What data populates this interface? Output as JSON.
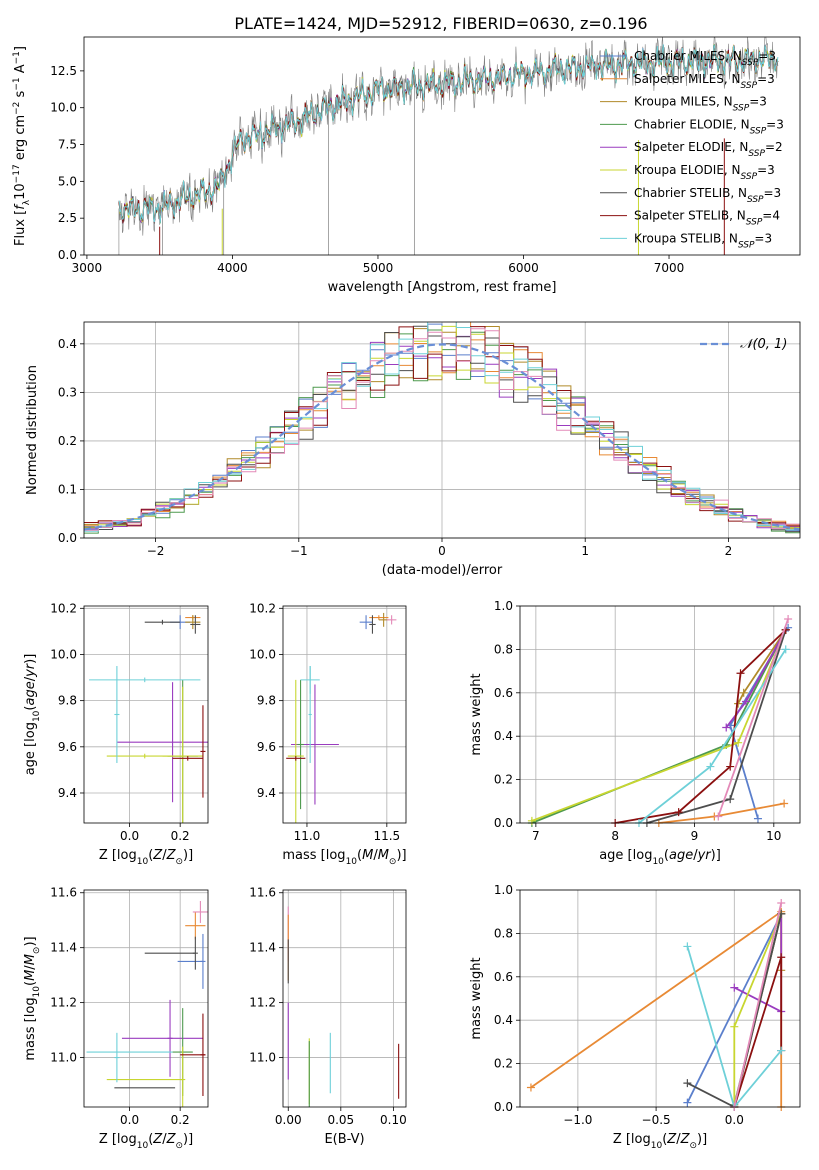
{
  "figure": {
    "title": "PLATE=1424, MJD=52912, FIBERID=0630, z=0.196",
    "colors": [
      "#5b7fcc",
      "#e88a35",
      "#b08a2a",
      "#4e9a4e",
      "#9a3cbf",
      "#c8d630",
      "#4d4d4d",
      "#8b1010",
      "#6ed0d8",
      "#e38ab8",
      "#7f7f7f"
    ]
  },
  "chart_data": [
    {
      "id": "spectrum",
      "type": "line",
      "title": "PLATE=1424, MJD=52912, FIBERID=0630, z=0.196",
      "xlabel": "wavelength [Angstrom, rest frame]",
      "ylabel": "Flux [f_λ 10^-17 erg cm^-2 s^-1 A^-1]",
      "xlim": [
        2980,
        7900
      ],
      "ylim": [
        0,
        14.8
      ],
      "xticks": [
        "3000",
        "4000",
        "5000",
        "6000",
        "7000"
      ],
      "yticks": [
        "0.0",
        "2.5",
        "5.0",
        "7.5",
        "10.0",
        "12.5"
      ],
      "grid": false,
      "legend_position": "right",
      "legend": [
        "Chabrier MILES, N_SSP=3",
        "Salpeter MILES, N_SSP=3",
        "Kroupa MILES, N_SSP=3",
        "Chabrier ELODIE, N_SSP=3",
        "Salpeter ELODIE, N_SSP=2",
        "Kroupa ELODIE, N_SSP=3",
        "Chabrier STELIB, N_SSP=3",
        "Salpeter STELIB, N_SSP=4",
        "Kroupa STELIB, N_SSP=3"
      ],
      "continuum_anchors": {
        "x": [
          3220,
          3500,
          3900,
          4050,
          4400,
          4700,
          5000,
          5400,
          5800,
          6200,
          6600,
          7000,
          7400,
          7750
        ],
        "y": [
          3.1,
          3.2,
          4.6,
          7.8,
          8.9,
          10.2,
          11.2,
          11.6,
          12.0,
          12.6,
          12.9,
          13.1,
          13.2,
          13.3
        ]
      }
    },
    {
      "id": "residuals",
      "type": "histogram",
      "xlabel": "(data-model)/error",
      "ylabel": "Normed distribution",
      "xlim": [
        -2.5,
        2.5
      ],
      "ylim": [
        0,
        0.445
      ],
      "xticks": [
        "−2",
        "−1",
        "0",
        "1",
        "2"
      ],
      "yticks": [
        "0.0",
        "0.1",
        "0.2",
        "0.3",
        "0.4"
      ],
      "grid": true,
      "legend_position": "top-right",
      "gaussian_label": "𝒩(0, 1)",
      "bin_width": 0.1
    },
    {
      "id": "age-vs-Z",
      "type": "errorbar",
      "xlabel": "Z [log10(Z/Z⊙)]",
      "ylabel": "age [log10(age/yr)]",
      "xlim": [
        -0.18,
        0.31
      ],
      "ylim": [
        9.27,
        10.21
      ],
      "xticks": [
        "0.0",
        "0.2"
      ],
      "yticks": [
        "9.4",
        "9.6",
        "9.8",
        "10.0",
        "10.2"
      ],
      "grid": true,
      "points": [
        {
          "x": 0.2,
          "y": 10.14,
          "xerr": 0.04,
          "yerr": 0.03,
          "c": 0
        },
        {
          "x": 0.25,
          "y": 10.16,
          "xerr": 0.03,
          "yerr": 0.01,
          "c": 1
        },
        {
          "x": 0.25,
          "y": 10.14,
          "xerr": 0.03,
          "yerr": 0.03,
          "c": 2
        },
        {
          "x": 0.26,
          "y": 10.13,
          "xerr": 0.02,
          "yerr": 0.04,
          "c": 6
        },
        {
          "x": 0.13,
          "y": 10.14,
          "xerr": 0.07,
          "yerr": 0.01,
          "c": 6
        },
        {
          "x": 0.17,
          "y": 9.62,
          "xerr": 0.22,
          "yerr": 0.26,
          "c": 4
        },
        {
          "x": 0.21,
          "y": 9.56,
          "xerr": 0.06,
          "yerr": 0.33,
          "c": 3
        },
        {
          "x": 0.21,
          "y": 9.56,
          "xerr": 0.08,
          "yerr": 0.3,
          "c": 5
        },
        {
          "x": 0.06,
          "y": 9.56,
          "xerr": 0.15,
          "yerr": 0.01,
          "c": 5
        },
        {
          "x": 0.23,
          "y": 9.55,
          "xerr": 0.06,
          "yerr": 0.01,
          "c": 7
        },
        {
          "x": 0.29,
          "y": 9.58,
          "xerr": 0.01,
          "yerr": 0.2,
          "c": 7
        },
        {
          "x": 0.06,
          "y": 9.89,
          "xerr": 0.22,
          "yerr": 0.01,
          "c": 8
        },
        {
          "x": -0.05,
          "y": 9.74,
          "xerr": 0.01,
          "yerr": 0.21,
          "c": 8
        }
      ]
    },
    {
      "id": "age-vs-mass",
      "type": "errorbar",
      "xlabel": "mass [log10(M/M⊙)]",
      "ylabel": "",
      "xlim": [
        10.85,
        11.62
      ],
      "ylim": [
        9.27,
        10.21
      ],
      "xticks": [
        "11.0",
        "11.5"
      ],
      "yticks": [
        "9.4",
        "9.6",
        "9.8",
        "10.0",
        "10.2"
      ],
      "grid": true,
      "points": [
        {
          "x": 11.37,
          "y": 10.14,
          "xerr": 0.04,
          "yerr": 0.03,
          "c": 0
        },
        {
          "x": 11.45,
          "y": 10.16,
          "xerr": 0.06,
          "yerr": 0.01,
          "c": 1
        },
        {
          "x": 11.48,
          "y": 10.15,
          "xerr": 0.03,
          "yerr": 0.03,
          "c": 2
        },
        {
          "x": 11.53,
          "y": 10.15,
          "xerr": 0.03,
          "yerr": 0.02,
          "c": 9
        },
        {
          "x": 11.41,
          "y": 10.13,
          "xerr": 0.02,
          "yerr": 0.04,
          "c": 6
        },
        {
          "x": 11.05,
          "y": 9.61,
          "xerr": 0.15,
          "yerr": 0.26,
          "c": 4
        },
        {
          "x": 10.96,
          "y": 9.61,
          "xerr": 0.02,
          "yerr": 0.28,
          "c": 3
        },
        {
          "x": 10.93,
          "y": 9.56,
          "xerr": 0.05,
          "yerr": 0.33,
          "c": 5
        },
        {
          "x": 10.93,
          "y": 9.55,
          "xerr": 0.06,
          "yerr": 0.01,
          "c": 7
        },
        {
          "x": 11.02,
          "y": 9.89,
          "xerr": 0.06,
          "yerr": 0.06,
          "c": 8
        },
        {
          "x": 11.02,
          "y": 9.74,
          "xerr": 0.01,
          "yerr": 0.21,
          "c": 8
        }
      ]
    },
    {
      "id": "massweight-vs-age",
      "type": "line",
      "xlabel": "age [log10(age/yr)]",
      "ylabel": "mass weight",
      "xlim": [
        6.8,
        10.33
      ],
      "ylim": [
        0,
        1
      ],
      "xticks": [
        "7",
        "8",
        "9",
        "10"
      ],
      "yticks": [
        "0.0",
        "0.2",
        "0.4",
        "0.6",
        "0.8",
        "1.0"
      ],
      "grid": true,
      "series": [
        {
          "c": 0,
          "x": [
            10.18,
            9.45,
            9.8
          ],
          "y": [
            0.9,
            0.45,
            0.02
          ]
        },
        {
          "c": 1,
          "x": [
            10.13,
            9.25,
            8.55
          ],
          "y": [
            0.09,
            0.03,
            0.0
          ]
        },
        {
          "c": 2,
          "x": [
            10.15,
            9.62,
            9.55
          ],
          "y": [
            0.89,
            0.6,
            0.55
          ]
        },
        {
          "c": 3,
          "x": [
            10.15,
            9.4,
            6.95
          ],
          "y": [
            0.89,
            0.36,
            0.0
          ]
        },
        {
          "c": 4,
          "x": [
            10.15,
            9.65,
            9.4
          ],
          "y": [
            0.89,
            0.56,
            0.44
          ]
        },
        {
          "c": 5,
          "x": [
            10.15,
            9.55,
            6.95
          ],
          "y": [
            0.89,
            0.37,
            0.01
          ]
        },
        {
          "c": 6,
          "x": [
            10.15,
            9.45,
            8.4
          ],
          "y": [
            0.89,
            0.11,
            0.0
          ]
        },
        {
          "c": 7,
          "x": [
            10.15,
            9.58,
            9.45,
            8.8,
            8.0
          ],
          "y": [
            0.89,
            0.69,
            0.26,
            0.05,
            0.0
          ]
        },
        {
          "c": 8,
          "x": [
            10.15,
            9.2,
            8.3
          ],
          "y": [
            0.8,
            0.26,
            0.0
          ]
        },
        {
          "c": 9,
          "x": [
            10.18,
            9.3
          ],
          "y": [
            0.94,
            0.03
          ]
        }
      ]
    },
    {
      "id": "mass-vs-Z",
      "type": "errorbar",
      "xlabel": "Z [log10(Z/Z⊙)]",
      "ylabel": "mass [log10(M/M⊙)]",
      "xlim": [
        -0.18,
        0.31
      ],
      "ylim": [
        10.82,
        11.61
      ],
      "xticks": [
        "0.0",
        "0.2"
      ],
      "yticks": [
        "11.0",
        "11.2",
        "11.4",
        "11.6"
      ],
      "grid": true,
      "points": [
        {
          "x": 0.24,
          "y": 11.35,
          "xerr": 0.05,
          "yerr": 0.0,
          "c": 0
        },
        {
          "x": 0.29,
          "y": 11.35,
          "xerr": 0.01,
          "yerr": 0.1,
          "c": 0
        },
        {
          "x": 0.26,
          "y": 11.48,
          "xerr": 0.04,
          "yerr": 0.05,
          "c": 1
        },
        {
          "x": 0.28,
          "y": 11.53,
          "xerr": 0.03,
          "yerr": 0.04,
          "c": 9
        },
        {
          "x": 0.16,
          "y": 11.38,
          "xerr": 0.1,
          "yerr": 0.0,
          "c": 6
        },
        {
          "x": 0.26,
          "y": 11.38,
          "xerr": 0.01,
          "yerr": 0.06,
          "c": 6
        },
        {
          "x": 0.13,
          "y": 11.07,
          "xerr": 0.16,
          "yerr": 0.0,
          "c": 4
        },
        {
          "x": 0.16,
          "y": 11.07,
          "xerr": 0.01,
          "yerr": 0.14,
          "c": 4
        },
        {
          "x": 0.21,
          "y": 11.02,
          "xerr": 0.04,
          "yerr": 0.16,
          "c": 3
        },
        {
          "x": 0.06,
          "y": 10.92,
          "xerr": 0.15,
          "yerr": 0.0,
          "c": 5
        },
        {
          "x": 0.21,
          "y": 10.92,
          "xerr": 0.01,
          "yerr": 0.12,
          "c": 5
        },
        {
          "x": 0.06,
          "y": 10.89,
          "xerr": 0.12,
          "yerr": 0.0,
          "c": 6
        },
        {
          "x": 0.25,
          "y": 11.01,
          "xerr": 0.05,
          "yerr": 0.0,
          "c": 7
        },
        {
          "x": 0.29,
          "y": 11.01,
          "xerr": 0.01,
          "yerr": 0.15,
          "c": 7
        },
        {
          "x": 0.0,
          "y": 11.02,
          "xerr": 0.17,
          "yerr": 0.0,
          "c": 8
        },
        {
          "x": -0.05,
          "y": 11.0,
          "xerr": 0.01,
          "yerr": 0.09,
          "c": 8
        }
      ]
    },
    {
      "id": "mass-vs-EBV",
      "type": "errorbar",
      "xlabel": "E(B-V)",
      "ylabel": "",
      "xlim": [
        -0.005,
        0.112
      ],
      "ylim": [
        10.82,
        11.61
      ],
      "xticks": [
        "0.00",
        "0.05",
        "0.10"
      ],
      "yticks": [
        "11.0",
        "11.2",
        "11.4",
        "11.6"
      ],
      "grid": true,
      "points": [
        {
          "x": 0.0,
          "y": 11.45,
          "xerr": 0.0,
          "yerr": 0.1,
          "c": 9
        },
        {
          "x": 0.0,
          "y": 11.4,
          "xerr": 0.0,
          "yerr": 0.12,
          "c": 1
        },
        {
          "x": 0.0,
          "y": 11.35,
          "xerr": 0.0,
          "yerr": 0.08,
          "c": 6
        },
        {
          "x": 0.0,
          "y": 11.06,
          "xerr": 0.0,
          "yerr": 0.14,
          "c": 4
        },
        {
          "x": 0.02,
          "y": 10.95,
          "xerr": 0.0,
          "yerr": 0.12,
          "c": 5
        },
        {
          "x": 0.02,
          "y": 10.94,
          "xerr": 0.0,
          "yerr": 0.12,
          "c": 3
        },
        {
          "x": 0.04,
          "y": 10.98,
          "xerr": 0.0,
          "yerr": 0.11,
          "c": 8
        },
        {
          "x": 0.105,
          "y": 10.95,
          "xerr": 0.0,
          "yerr": 0.1,
          "c": 7
        }
      ]
    },
    {
      "id": "massweight-vs-Z",
      "type": "line",
      "xlabel": "Z [log10(Z/Z⊙)]",
      "ylabel": "mass weight",
      "xlim": [
        -1.37,
        0.42
      ],
      "ylim": [
        0,
        1
      ],
      "xticks": [
        "−1.0",
        "−0.5",
        "0.0"
      ],
      "yticks": [
        "0.0",
        "0.2",
        "0.4",
        "0.6",
        "0.8",
        "1.0"
      ],
      "grid": true,
      "series": [
        {
          "c": 0,
          "x": [
            0.3,
            -0.3
          ],
          "y": [
            0.89,
            0.02
          ]
        },
        {
          "c": 1,
          "x": [
            -1.3,
            0.3,
            0.3
          ],
          "y": [
            0.09,
            0.9,
            0.0
          ]
        },
        {
          "c": 2,
          "x": [
            0.0,
            0.3,
            0.3
          ],
          "y": [
            0.0,
            0.89,
            0.63
          ]
        },
        {
          "c": 3,
          "x": [
            0.0,
            0.3
          ],
          "y": [
            0.01,
            0.89
          ]
        },
        {
          "c": 4,
          "x": [
            0.0,
            0.3,
            0.3
          ],
          "y": [
            0.55,
            0.44,
            0.89
          ]
        },
        {
          "c": 5,
          "x": [
            0.0,
            0.0,
            0.3
          ],
          "y": [
            0.0,
            0.37,
            0.89
          ]
        },
        {
          "c": 6,
          "x": [
            -0.3,
            0.0,
            0.3
          ],
          "y": [
            0.11,
            0.0,
            0.89
          ]
        },
        {
          "c": 7,
          "x": [
            0.0,
            0.3,
            0.3
          ],
          "y": [
            0.0,
            0.69,
            0.26
          ]
        },
        {
          "c": 8,
          "x": [
            -0.3,
            0.0,
            0.3
          ],
          "y": [
            0.74,
            0.0,
            0.26
          ]
        },
        {
          "c": 9,
          "x": [
            0.0,
            0.3
          ],
          "y": [
            0.0,
            0.94
          ]
        }
      ]
    }
  ]
}
